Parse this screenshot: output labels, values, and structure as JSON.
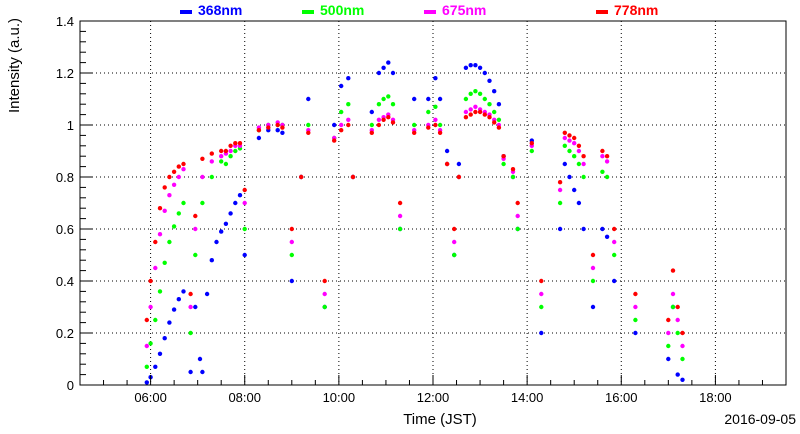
{
  "chart_data": {
    "type": "scatter",
    "title": "",
    "xlabel": "Time (JST)",
    "ylabel": "Intensity (a.u.)",
    "date_label": "2016-09-05",
    "x_unit": "hour (JST)",
    "xlim": [
      4.5,
      19.5
    ],
    "ylim": [
      0,
      1.4
    ],
    "x_ticks": [
      6,
      8,
      10,
      12,
      14,
      16,
      18
    ],
    "x_tick_labels": [
      "06:00",
      "08:00",
      "10:00",
      "12:00",
      "14:00",
      "16:00",
      "18:00"
    ],
    "y_ticks": [
      0,
      0.2,
      0.4,
      0.6,
      0.8,
      1,
      1.2,
      1.4
    ],
    "y_tick_labels": [
      "0",
      "0.2",
      "0.4",
      "0.6",
      "0.8",
      "1",
      "1.2",
      "1.4"
    ],
    "grid": true,
    "legend_position": "top",
    "series": [
      {
        "name": "368nm",
        "color": "#0000ff",
        "points": [
          [
            5.92,
            0.01
          ],
          [
            6.0,
            0.03
          ],
          [
            6.1,
            0.07
          ],
          [
            6.2,
            0.12
          ],
          [
            6.3,
            0.18
          ],
          [
            6.4,
            0.24
          ],
          [
            6.5,
            0.29
          ],
          [
            6.6,
            0.33
          ],
          [
            6.7,
            0.36
          ],
          [
            6.85,
            0.05
          ],
          [
            6.95,
            0.3
          ],
          [
            7.05,
            0.1
          ],
          [
            7.1,
            0.05
          ],
          [
            7.2,
            0.35
          ],
          [
            7.3,
            0.48
          ],
          [
            7.4,
            0.55
          ],
          [
            7.5,
            0.59
          ],
          [
            7.6,
            0.62
          ],
          [
            7.7,
            0.66
          ],
          [
            7.8,
            0.7
          ],
          [
            7.9,
            0.73
          ],
          [
            8.0,
            0.5
          ],
          [
            8.3,
            0.95
          ],
          [
            8.5,
            0.98
          ],
          [
            8.7,
            0.98
          ],
          [
            8.8,
            0.97
          ],
          [
            9.0,
            0.4
          ],
          [
            9.2,
            0.8
          ],
          [
            9.35,
            1.1
          ],
          [
            9.7,
            0.3
          ],
          [
            9.9,
            1.0
          ],
          [
            10.05,
            1.15
          ],
          [
            10.2,
            1.18
          ],
          [
            10.3,
            0.8
          ],
          [
            10.7,
            1.05
          ],
          [
            10.85,
            1.2
          ],
          [
            10.95,
            1.22
          ],
          [
            11.05,
            1.24
          ],
          [
            11.15,
            1.2
          ],
          [
            11.3,
            0.6
          ],
          [
            11.6,
            1.1
          ],
          [
            11.9,
            1.1
          ],
          [
            12.05,
            1.18
          ],
          [
            12.15,
            1.1
          ],
          [
            12.3,
            0.9
          ],
          [
            12.45,
            0.5
          ],
          [
            12.55,
            0.85
          ],
          [
            12.7,
            1.22
          ],
          [
            12.8,
            1.23
          ],
          [
            12.9,
            1.23
          ],
          [
            13.0,
            1.22
          ],
          [
            13.1,
            1.2
          ],
          [
            13.2,
            1.17
          ],
          [
            13.3,
            1.13
          ],
          [
            13.4,
            1.08
          ],
          [
            13.5,
            0.88
          ],
          [
            13.7,
            0.8
          ],
          [
            13.8,
            0.6
          ],
          [
            14.1,
            0.94
          ],
          [
            14.3,
            0.2
          ],
          [
            14.7,
            0.6
          ],
          [
            14.8,
            0.85
          ],
          [
            14.9,
            0.8
          ],
          [
            15.0,
            0.75
          ],
          [
            15.1,
            0.7
          ],
          [
            15.2,
            0.6
          ],
          [
            15.4,
            0.3
          ],
          [
            15.6,
            0.6
          ],
          [
            15.7,
            0.57
          ],
          [
            15.85,
            0.4
          ],
          [
            16.3,
            0.2
          ],
          [
            17.0,
            0.1
          ],
          [
            17.1,
            0.3
          ],
          [
            17.2,
            0.04
          ],
          [
            17.3,
            0.02
          ]
        ]
      },
      {
        "name": "500nm",
        "color": "#00ff00",
        "points": [
          [
            5.92,
            0.07
          ],
          [
            6.0,
            0.16
          ],
          [
            6.1,
            0.25
          ],
          [
            6.2,
            0.36
          ],
          [
            6.3,
            0.47
          ],
          [
            6.4,
            0.55
          ],
          [
            6.5,
            0.61
          ],
          [
            6.6,
            0.66
          ],
          [
            6.7,
            0.7
          ],
          [
            6.85,
            0.2
          ],
          [
            6.95,
            0.5
          ],
          [
            7.1,
            0.7
          ],
          [
            7.3,
            0.8
          ],
          [
            7.5,
            0.86
          ],
          [
            7.6,
            0.85
          ],
          [
            7.7,
            0.88
          ],
          [
            7.8,
            0.9
          ],
          [
            7.9,
            0.91
          ],
          [
            8.0,
            0.6
          ],
          [
            8.3,
            0.98
          ],
          [
            8.5,
            1.0
          ],
          [
            8.7,
            1.0
          ],
          [
            8.8,
            1.0
          ],
          [
            9.0,
            0.5
          ],
          [
            9.2,
            0.8
          ],
          [
            9.35,
            1.0
          ],
          [
            9.7,
            0.3
          ],
          [
            9.9,
            0.95
          ],
          [
            10.05,
            1.05
          ],
          [
            10.2,
            1.08
          ],
          [
            10.3,
            0.8
          ],
          [
            10.7,
            1.0
          ],
          [
            10.85,
            1.08
          ],
          [
            10.95,
            1.1
          ],
          [
            11.05,
            1.11
          ],
          [
            11.15,
            1.08
          ],
          [
            11.3,
            0.6
          ],
          [
            11.6,
            1.0
          ],
          [
            11.9,
            1.05
          ],
          [
            12.05,
            1.07
          ],
          [
            12.15,
            1.0
          ],
          [
            12.3,
            0.85
          ],
          [
            12.45,
            0.5
          ],
          [
            12.55,
            0.8
          ],
          [
            12.7,
            1.1
          ],
          [
            12.8,
            1.12
          ],
          [
            12.9,
            1.13
          ],
          [
            13.0,
            1.12
          ],
          [
            13.1,
            1.1
          ],
          [
            13.2,
            1.08
          ],
          [
            13.3,
            1.05
          ],
          [
            13.4,
            1.02
          ],
          [
            13.5,
            0.85
          ],
          [
            13.7,
            0.8
          ],
          [
            13.8,
            0.6
          ],
          [
            14.1,
            0.9
          ],
          [
            14.3,
            0.3
          ],
          [
            14.7,
            0.7
          ],
          [
            14.8,
            0.92
          ],
          [
            14.9,
            0.9
          ],
          [
            15.0,
            0.88
          ],
          [
            15.1,
            0.85
          ],
          [
            15.2,
            0.8
          ],
          [
            15.4,
            0.4
          ],
          [
            15.6,
            0.82
          ],
          [
            15.7,
            0.8
          ],
          [
            15.85,
            0.5
          ],
          [
            16.3,
            0.25
          ],
          [
            17.0,
            0.15
          ],
          [
            17.1,
            0.3
          ],
          [
            17.2,
            0.2
          ],
          [
            17.3,
            0.1
          ]
        ]
      },
      {
        "name": "675nm",
        "color": "#ff00ff",
        "points": [
          [
            5.92,
            0.15
          ],
          [
            6.0,
            0.3
          ],
          [
            6.1,
            0.45
          ],
          [
            6.2,
            0.58
          ],
          [
            6.3,
            0.67
          ],
          [
            6.4,
            0.73
          ],
          [
            6.5,
            0.77
          ],
          [
            6.6,
            0.8
          ],
          [
            6.7,
            0.83
          ],
          [
            6.85,
            0.3
          ],
          [
            6.95,
            0.6
          ],
          [
            7.1,
            0.8
          ],
          [
            7.3,
            0.86
          ],
          [
            7.5,
            0.88
          ],
          [
            7.6,
            0.89
          ],
          [
            7.7,
            0.9
          ],
          [
            7.8,
            0.92
          ],
          [
            7.9,
            0.92
          ],
          [
            8.0,
            0.7
          ],
          [
            8.3,
            0.99
          ],
          [
            8.5,
            1.0
          ],
          [
            8.7,
            1.01
          ],
          [
            8.8,
            1.0
          ],
          [
            9.0,
            0.55
          ],
          [
            9.2,
            0.8
          ],
          [
            9.35,
            0.98
          ],
          [
            9.7,
            0.35
          ],
          [
            9.9,
            0.95
          ],
          [
            10.05,
            1.0
          ],
          [
            10.2,
            1.02
          ],
          [
            10.3,
            0.8
          ],
          [
            10.7,
            0.98
          ],
          [
            10.85,
            1.02
          ],
          [
            10.95,
            1.03
          ],
          [
            11.05,
            1.04
          ],
          [
            11.15,
            1.02
          ],
          [
            11.3,
            0.65
          ],
          [
            11.6,
            0.98
          ],
          [
            11.9,
            1.0
          ],
          [
            12.05,
            1.02
          ],
          [
            12.15,
            0.98
          ],
          [
            12.3,
            0.85
          ],
          [
            12.45,
            0.55
          ],
          [
            12.55,
            0.8
          ],
          [
            12.7,
            1.05
          ],
          [
            12.8,
            1.06
          ],
          [
            12.9,
            1.07
          ],
          [
            13.0,
            1.06
          ],
          [
            13.1,
            1.05
          ],
          [
            13.2,
            1.04
          ],
          [
            13.3,
            1.02
          ],
          [
            13.4,
            1.0
          ],
          [
            13.5,
            0.87
          ],
          [
            13.7,
            0.82
          ],
          [
            13.8,
            0.65
          ],
          [
            14.1,
            0.92
          ],
          [
            14.3,
            0.35
          ],
          [
            14.7,
            0.75
          ],
          [
            14.8,
            0.95
          ],
          [
            14.9,
            0.94
          ],
          [
            15.0,
            0.93
          ],
          [
            15.1,
            0.9
          ],
          [
            15.2,
            0.85
          ],
          [
            15.4,
            0.45
          ],
          [
            15.6,
            0.88
          ],
          [
            15.7,
            0.86
          ],
          [
            15.85,
            0.55
          ],
          [
            16.3,
            0.3
          ],
          [
            17.0,
            0.2
          ],
          [
            17.1,
            0.35
          ],
          [
            17.2,
            0.25
          ],
          [
            17.3,
            0.15
          ]
        ]
      },
      {
        "name": "778nm",
        "color": "#ff0000",
        "points": [
          [
            5.92,
            0.25
          ],
          [
            6.0,
            0.4
          ],
          [
            6.1,
            0.55
          ],
          [
            6.2,
            0.68
          ],
          [
            6.3,
            0.76
          ],
          [
            6.4,
            0.8
          ],
          [
            6.5,
            0.82
          ],
          [
            6.6,
            0.84
          ],
          [
            6.7,
            0.85
          ],
          [
            6.85,
            0.35
          ],
          [
            6.95,
            0.65
          ],
          [
            7.1,
            0.87
          ],
          [
            7.3,
            0.89
          ],
          [
            7.5,
            0.9
          ],
          [
            7.6,
            0.9
          ],
          [
            7.7,
            0.92
          ],
          [
            7.8,
            0.93
          ],
          [
            7.9,
            0.93
          ],
          [
            8.0,
            0.75
          ],
          [
            8.3,
            0.98
          ],
          [
            8.5,
            0.99
          ],
          [
            8.7,
            1.0
          ],
          [
            8.8,
            0.99
          ],
          [
            9.0,
            0.6
          ],
          [
            9.2,
            0.8
          ],
          [
            9.35,
            0.97
          ],
          [
            9.7,
            0.4
          ],
          [
            9.9,
            0.94
          ],
          [
            10.05,
            0.98
          ],
          [
            10.2,
            1.0
          ],
          [
            10.3,
            0.8
          ],
          [
            10.7,
            0.97
          ],
          [
            10.85,
            1.0
          ],
          [
            10.95,
            1.02
          ],
          [
            11.05,
            1.03
          ],
          [
            11.15,
            1.01
          ],
          [
            11.3,
            0.7
          ],
          [
            11.6,
            0.97
          ],
          [
            11.9,
            0.99
          ],
          [
            12.05,
            1.0
          ],
          [
            12.15,
            0.97
          ],
          [
            12.3,
            0.85
          ],
          [
            12.45,
            0.6
          ],
          [
            12.55,
            0.8
          ],
          [
            12.7,
            1.03
          ],
          [
            12.8,
            1.04
          ],
          [
            12.9,
            1.05
          ],
          [
            13.0,
            1.05
          ],
          [
            13.1,
            1.04
          ],
          [
            13.2,
            1.03
          ],
          [
            13.3,
            1.01
          ],
          [
            13.4,
            0.99
          ],
          [
            13.5,
            0.88
          ],
          [
            13.7,
            0.83
          ],
          [
            13.8,
            0.7
          ],
          [
            14.1,
            0.93
          ],
          [
            14.3,
            0.4
          ],
          [
            14.7,
            0.78
          ],
          [
            14.8,
            0.97
          ],
          [
            14.9,
            0.96
          ],
          [
            15.0,
            0.95
          ],
          [
            15.1,
            0.92
          ],
          [
            15.2,
            0.88
          ],
          [
            15.4,
            0.5
          ],
          [
            15.6,
            0.9
          ],
          [
            15.7,
            0.88
          ],
          [
            15.85,
            0.6
          ],
          [
            16.3,
            0.35
          ],
          [
            17.0,
            0.25
          ],
          [
            17.1,
            0.44
          ],
          [
            17.2,
            0.3
          ],
          [
            17.3,
            0.2
          ]
        ]
      }
    ]
  }
}
